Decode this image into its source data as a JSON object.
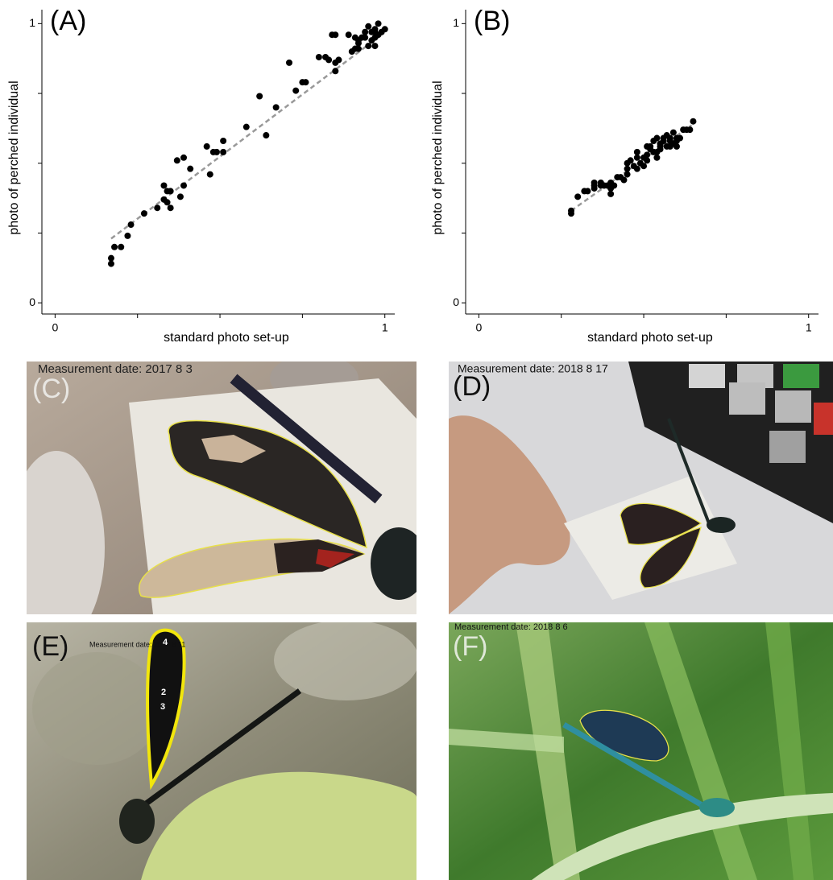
{
  "chart_data": [
    {
      "type": "scatter",
      "panel_label": "(A)",
      "xlabel": "standard photo set-up",
      "ylabel": "photo of perched individual",
      "color": "#000000",
      "trend_color": "#999999",
      "xlim": [
        -0.04,
        1.03
      ],
      "ylim": [
        -0.04,
        1.05
      ],
      "xticks": [
        0,
        1
      ],
      "yticks": [
        0,
        1
      ],
      "xminor_ticks": [
        0.25,
        0.5,
        0.75
      ],
      "yminor_ticks": [
        0.25,
        0.5,
        0.75
      ],
      "trend": {
        "x": [
          0.17,
          0.99
        ],
        "y": [
          0.23,
          0.96
        ]
      },
      "x": [
        0.17,
        0.17,
        0.18,
        0.2,
        0.22,
        0.23,
        0.27,
        0.31,
        0.33,
        0.33,
        0.34,
        0.34,
        0.35,
        0.35,
        0.38,
        0.39,
        0.37,
        0.39,
        0.41,
        0.46,
        0.47,
        0.48,
        0.49,
        0.51,
        0.51,
        0.58,
        0.62,
        0.64,
        0.67,
        0.71,
        0.73,
        0.75,
        0.76,
        0.8,
        0.82,
        0.83,
        0.84,
        0.85,
        0.85,
        0.85,
        0.86,
        0.89,
        0.91,
        0.91,
        0.92,
        0.92,
        0.93,
        0.94,
        0.94,
        0.95,
        0.95,
        0.96,
        0.96,
        0.97,
        0.97,
        0.98,
        0.98,
        0.99,
        0.97,
        0.97,
        1.0,
        0.92,
        0.9
      ],
      "y": [
        0.14,
        0.16,
        0.2,
        0.2,
        0.24,
        0.28,
        0.32,
        0.34,
        0.37,
        0.42,
        0.4,
        0.36,
        0.34,
        0.4,
        0.38,
        0.42,
        0.51,
        0.52,
        0.48,
        0.56,
        0.46,
        0.54,
        0.54,
        0.58,
        0.54,
        0.63,
        0.74,
        0.6,
        0.7,
        0.86,
        0.76,
        0.79,
        0.79,
        0.88,
        0.88,
        0.87,
        0.96,
        0.96,
        0.83,
        0.86,
        0.87,
        0.96,
        0.95,
        0.91,
        0.93,
        0.94,
        0.95,
        0.95,
        0.97,
        0.99,
        0.92,
        0.97,
        0.94,
        0.98,
        0.97,
        0.96,
        1.0,
        0.97,
        0.95,
        0.92,
        0.98,
        0.91,
        0.9
      ]
    },
    {
      "type": "scatter",
      "panel_label": "(B)",
      "xlabel": "standard photo set-up",
      "ylabel": "photo of perched individual",
      "color": "#000000",
      "trend_color": "#999999",
      "xlim": [
        -0.04,
        1.03
      ],
      "ylim": [
        -0.04,
        1.05
      ],
      "xticks": [
        0,
        1
      ],
      "yticks": [
        0,
        1
      ],
      "xminor_ticks": [
        0.25,
        0.5,
        0.75
      ],
      "yminor_ticks": [
        0.25,
        0.5,
        0.75
      ],
      "trend": {
        "x": [
          0.28,
          0.645
        ],
        "y": [
          0.33,
          0.636
        ]
      },
      "x": [
        0.28,
        0.28,
        0.3,
        0.32,
        0.33,
        0.35,
        0.35,
        0.37,
        0.38,
        0.39,
        0.4,
        0.4,
        0.4,
        0.42,
        0.43,
        0.44,
        0.45,
        0.45,
        0.46,
        0.47,
        0.48,
        0.48,
        0.49,
        0.5,
        0.5,
        0.51,
        0.51,
        0.52,
        0.52,
        0.53,
        0.53,
        0.54,
        0.54,
        0.55,
        0.55,
        0.55,
        0.56,
        0.56,
        0.57,
        0.57,
        0.58,
        0.58,
        0.58,
        0.59,
        0.59,
        0.6,
        0.6,
        0.6,
        0.61,
        0.62,
        0.63,
        0.64,
        0.65,
        0.45,
        0.51,
        0.54,
        0.48,
        0.41,
        0.35,
        0.37
      ],
      "y": [
        0.32,
        0.33,
        0.38,
        0.4,
        0.4,
        0.43,
        0.41,
        0.42,
        0.42,
        0.42,
        0.39,
        0.41,
        0.43,
        0.45,
        0.45,
        0.44,
        0.5,
        0.48,
        0.51,
        0.49,
        0.52,
        0.54,
        0.5,
        0.52,
        0.49,
        0.51,
        0.53,
        0.55,
        0.56,
        0.54,
        0.58,
        0.54,
        0.59,
        0.56,
        0.57,
        0.55,
        0.59,
        0.58,
        0.56,
        0.6,
        0.58,
        0.56,
        0.59,
        0.57,
        0.61,
        0.58,
        0.59,
        0.56,
        0.59,
        0.62,
        0.62,
        0.62,
        0.65,
        0.46,
        0.56,
        0.52,
        0.48,
        0.42,
        0.42,
        0.43
      ]
    }
  ],
  "photos": [
    {
      "panel_label": "(C)",
      "measurement_date": "Measurement date: 2017 8 3"
    },
    {
      "panel_label": "(D)",
      "measurement_date": "Measurement date: 2018 8 17"
    },
    {
      "panel_label": "(E)",
      "measurement_date": "Measurement date: 2017 8 11",
      "wing_numbers": [
        "4",
        "2",
        "3"
      ]
    },
    {
      "panel_label": "(F)",
      "measurement_date": "Measurement date: 2018 8 6"
    }
  ]
}
